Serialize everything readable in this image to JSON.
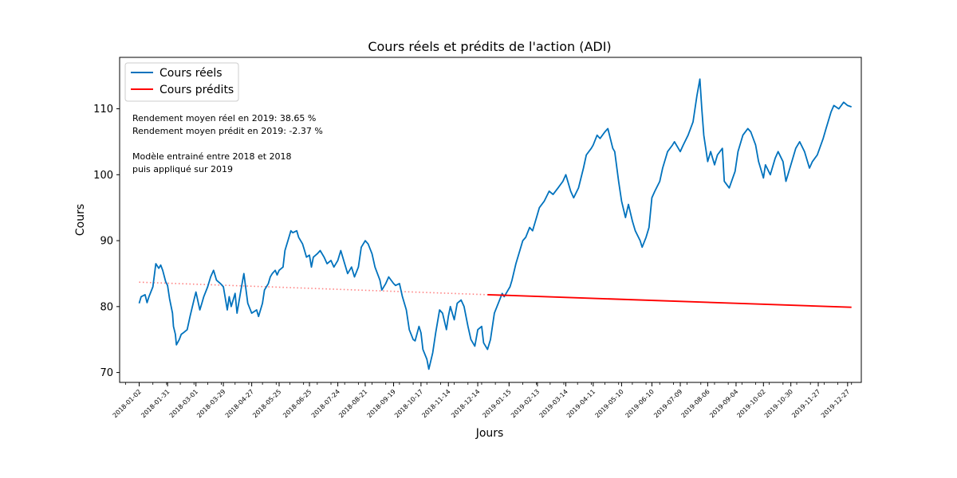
{
  "chart_data": {
    "type": "line",
    "title": "Cours réels et prédits de l'action (ADI)",
    "xlabel": "Jours",
    "ylabel": "Cours",
    "ylim": [
      68.5,
      117.8
    ],
    "yticks": [
      70,
      80,
      90,
      100,
      110
    ],
    "x_range": [
      "2017-12-13",
      "2020-01-10"
    ],
    "xticks": [
      "2018-01-02",
      "2018-01-31",
      "2018-03-01",
      "2018-03-29",
      "2018-04-27",
      "2018-05-25",
      "2018-06-25",
      "2018-07-24",
      "2018-08-21",
      "2018-09-19",
      "2018-10-17",
      "2018-11-14",
      "2018-12-14",
      "2019-01-15",
      "2019-02-13",
      "2019-03-14",
      "2019-04-11",
      "2019-05-10",
      "2019-06-10",
      "2019-07-09",
      "2019-08-06",
      "2019-09-04",
      "2019-10-02",
      "2019-10-30",
      "2019-11-27",
      "2019-12-27"
    ],
    "legend": {
      "position": "top-left",
      "entries": [
        "Cours réels",
        "Cours prédits"
      ]
    },
    "annotations": [
      "Rendement moyen réel en 2019: 38.65 %",
      "Rendement moyen prédit en 2019: -2.37 %",
      "",
      "Modèle entrainé entre 2018 et 2018",
      "puis appliqué sur 2019"
    ],
    "series": [
      {
        "name": "Cours réels",
        "color": "#0072bd",
        "style": "solid",
        "points": [
          [
            "2018-01-02",
            80.5
          ],
          [
            "2018-01-04",
            81.5
          ],
          [
            "2018-01-08",
            81.8
          ],
          [
            "2018-01-10",
            80.6
          ],
          [
            "2018-01-12",
            81.5
          ],
          [
            "2018-01-16",
            83.0
          ],
          [
            "2018-01-19",
            86.5
          ],
          [
            "2018-01-22",
            85.8
          ],
          [
            "2018-01-24",
            86.3
          ],
          [
            "2018-01-26",
            85.5
          ],
          [
            "2018-01-29",
            83.8
          ],
          [
            "2018-01-31",
            83.2
          ],
          [
            "2018-02-02",
            81.2
          ],
          [
            "2018-02-05",
            79.0
          ],
          [
            "2018-02-06",
            77.0
          ],
          [
            "2018-02-08",
            75.8
          ],
          [
            "2018-02-09",
            74.2
          ],
          [
            "2018-02-12",
            75.0
          ],
          [
            "2018-02-14",
            75.8
          ],
          [
            "2018-02-16",
            76.0
          ],
          [
            "2018-02-20",
            76.5
          ],
          [
            "2018-02-23",
            78.5
          ],
          [
            "2018-02-27",
            81.0
          ],
          [
            "2018-03-01",
            82.2
          ],
          [
            "2018-03-05",
            79.5
          ],
          [
            "2018-03-07",
            80.5
          ],
          [
            "2018-03-09",
            81.5
          ],
          [
            "2018-03-13",
            83.0
          ],
          [
            "2018-03-16",
            84.5
          ],
          [
            "2018-03-19",
            85.5
          ],
          [
            "2018-03-22",
            84.0
          ],
          [
            "2018-03-26",
            83.5
          ],
          [
            "2018-03-29",
            83.0
          ],
          [
            "2018-04-02",
            79.5
          ],
          [
            "2018-04-04",
            81.5
          ],
          [
            "2018-04-06",
            80.0
          ],
          [
            "2018-04-10",
            82.0
          ],
          [
            "2018-04-12",
            79.0
          ],
          [
            "2018-04-16",
            82.5
          ],
          [
            "2018-04-19",
            85.0
          ],
          [
            "2018-04-23",
            80.5
          ],
          [
            "2018-04-27",
            79.0
          ],
          [
            "2018-05-02",
            79.5
          ],
          [
            "2018-05-04",
            78.5
          ],
          [
            "2018-05-08",
            80.5
          ],
          [
            "2018-05-10",
            82.5
          ],
          [
            "2018-05-14",
            83.5
          ],
          [
            "2018-05-16",
            84.5
          ],
          [
            "2018-05-18",
            85.0
          ],
          [
            "2018-05-21",
            85.5
          ],
          [
            "2018-05-23",
            84.8
          ],
          [
            "2018-05-25",
            85.5
          ],
          [
            "2018-05-29",
            86.0
          ],
          [
            "2018-05-31",
            88.5
          ],
          [
            "2018-06-04",
            90.5
          ],
          [
            "2018-06-06",
            91.5
          ],
          [
            "2018-06-08",
            91.2
          ],
          [
            "2018-06-12",
            91.5
          ],
          [
            "2018-06-14",
            90.5
          ],
          [
            "2018-06-18",
            89.5
          ],
          [
            "2018-06-20",
            88.5
          ],
          [
            "2018-06-22",
            87.5
          ],
          [
            "2018-06-25",
            87.8
          ],
          [
            "2018-06-27",
            86.0
          ],
          [
            "2018-06-29",
            87.5
          ],
          [
            "2018-07-03",
            88.0
          ],
          [
            "2018-07-06",
            88.5
          ],
          [
            "2018-07-10",
            87.5
          ],
          [
            "2018-07-13",
            86.5
          ],
          [
            "2018-07-17",
            87.0
          ],
          [
            "2018-07-20",
            86.0
          ],
          [
            "2018-07-24",
            87.0
          ],
          [
            "2018-07-27",
            88.5
          ],
          [
            "2018-07-31",
            86.5
          ],
          [
            "2018-08-03",
            85.0
          ],
          [
            "2018-08-07",
            86.0
          ],
          [
            "2018-08-10",
            84.5
          ],
          [
            "2018-08-14",
            86.0
          ],
          [
            "2018-08-17",
            89.0
          ],
          [
            "2018-08-21",
            90.0
          ],
          [
            "2018-08-24",
            89.5
          ],
          [
            "2018-08-28",
            88.0
          ],
          [
            "2018-08-31",
            86.0
          ],
          [
            "2018-09-05",
            84.0
          ],
          [
            "2018-09-07",
            82.5
          ],
          [
            "2018-09-11",
            83.5
          ],
          [
            "2018-09-14",
            84.5
          ],
          [
            "2018-09-19",
            83.5
          ],
          [
            "2018-09-21",
            83.2
          ],
          [
            "2018-09-25",
            83.5
          ],
          [
            "2018-09-28",
            81.5
          ],
          [
            "2018-10-02",
            79.5
          ],
          [
            "2018-10-05",
            76.5
          ],
          [
            "2018-10-09",
            75.0
          ],
          [
            "2018-10-11",
            74.8
          ],
          [
            "2018-10-15",
            77.0
          ],
          [
            "2018-10-17",
            76.0
          ],
          [
            "2018-10-19",
            73.5
          ],
          [
            "2018-10-23",
            72.0
          ],
          [
            "2018-10-25",
            70.5
          ],
          [
            "2018-10-29",
            73.0
          ],
          [
            "2018-11-01",
            76.0
          ],
          [
            "2018-11-05",
            79.5
          ],
          [
            "2018-11-08",
            79.0
          ],
          [
            "2018-11-12",
            76.5
          ],
          [
            "2018-11-14",
            78.5
          ],
          [
            "2018-11-16",
            80.0
          ],
          [
            "2018-11-20",
            78.0
          ],
          [
            "2018-11-23",
            80.5
          ],
          [
            "2018-11-27",
            81.0
          ],
          [
            "2018-11-30",
            80.0
          ],
          [
            "2018-12-04",
            77.0
          ],
          [
            "2018-12-07",
            75.0
          ],
          [
            "2018-12-11",
            74.0
          ],
          [
            "2018-12-14",
            76.5
          ],
          [
            "2018-12-18",
            77.0
          ],
          [
            "2018-12-20",
            74.5
          ],
          [
            "2018-12-24",
            73.5
          ],
          [
            "2018-12-27",
            75.0
          ],
          [
            "2018-12-31",
            79.0
          ],
          [
            "2019-01-04",
            80.5
          ],
          [
            "2019-01-08",
            82.0
          ],
          [
            "2019-01-10",
            81.5
          ],
          [
            "2019-01-14",
            82.5
          ],
          [
            "2019-01-16",
            83.0
          ],
          [
            "2019-01-18",
            84.0
          ],
          [
            "2019-01-22",
            86.5
          ],
          [
            "2019-01-25",
            88.0
          ],
          [
            "2019-01-29",
            90.0
          ],
          [
            "2019-02-01",
            90.5
          ],
          [
            "2019-02-05",
            92.0
          ],
          [
            "2019-02-08",
            91.5
          ],
          [
            "2019-02-12",
            93.5
          ],
          [
            "2019-02-15",
            95.0
          ],
          [
            "2019-02-20",
            96.0
          ],
          [
            "2019-02-25",
            97.5
          ],
          [
            "2019-03-01",
            97.0
          ],
          [
            "2019-03-06",
            98.0
          ],
          [
            "2019-03-11",
            99.0
          ],
          [
            "2019-03-14",
            100.0
          ],
          [
            "2019-03-19",
            97.5
          ],
          [
            "2019-03-22",
            96.5
          ],
          [
            "2019-03-27",
            98.0
          ],
          [
            "2019-04-01",
            101.0
          ],
          [
            "2019-04-04",
            103.0
          ],
          [
            "2019-04-09",
            104.0
          ],
          [
            "2019-04-11",
            104.5
          ],
          [
            "2019-04-15",
            106.0
          ],
          [
            "2019-04-18",
            105.5
          ],
          [
            "2019-04-23",
            106.5
          ],
          [
            "2019-04-26",
            107.0
          ],
          [
            "2019-05-01",
            104.0
          ],
          [
            "2019-05-03",
            103.5
          ],
          [
            "2019-05-07",
            99.0
          ],
          [
            "2019-05-10",
            96.0
          ],
          [
            "2019-05-14",
            93.5
          ],
          [
            "2019-05-17",
            95.5
          ],
          [
            "2019-05-21",
            93.0
          ],
          [
            "2019-05-24",
            91.5
          ],
          [
            "2019-05-29",
            90.0
          ],
          [
            "2019-05-31",
            89.0
          ],
          [
            "2019-06-04",
            90.5
          ],
          [
            "2019-06-07",
            92.0
          ],
          [
            "2019-06-10",
            96.5
          ],
          [
            "2019-06-13",
            97.5
          ],
          [
            "2019-06-18",
            99.0
          ],
          [
            "2019-06-21",
            101.0
          ],
          [
            "2019-06-26",
            103.5
          ],
          [
            "2019-07-01",
            104.5
          ],
          [
            "2019-07-03",
            105.0
          ],
          [
            "2019-07-09",
            103.5
          ],
          [
            "2019-07-12",
            104.5
          ],
          [
            "2019-07-17",
            106.0
          ],
          [
            "2019-07-22",
            108.0
          ],
          [
            "2019-07-26",
            112.0
          ],
          [
            "2019-07-29",
            114.5
          ],
          [
            "2019-07-31",
            110.0
          ],
          [
            "2019-08-02",
            106.0
          ],
          [
            "2019-08-06",
            102.0
          ],
          [
            "2019-08-09",
            103.5
          ],
          [
            "2019-08-13",
            101.5
          ],
          [
            "2019-08-16",
            103.0
          ],
          [
            "2019-08-21",
            104.0
          ],
          [
            "2019-08-23",
            99.0
          ],
          [
            "2019-08-28",
            98.0
          ],
          [
            "2019-09-03",
            100.5
          ],
          [
            "2019-09-06",
            103.5
          ],
          [
            "2019-09-11",
            106.0
          ],
          [
            "2019-09-16",
            107.0
          ],
          [
            "2019-09-19",
            106.5
          ],
          [
            "2019-09-24",
            104.5
          ],
          [
            "2019-09-27",
            102.0
          ],
          [
            "2019-10-02",
            99.5
          ],
          [
            "2019-10-04",
            101.5
          ],
          [
            "2019-10-09",
            100.0
          ],
          [
            "2019-10-14",
            102.5
          ],
          [
            "2019-10-17",
            103.5
          ],
          [
            "2019-10-22",
            102.0
          ],
          [
            "2019-10-25",
            99.0
          ],
          [
            "2019-10-30",
            101.5
          ],
          [
            "2019-11-04",
            104.0
          ],
          [
            "2019-11-08",
            105.0
          ],
          [
            "2019-11-13",
            103.5
          ],
          [
            "2019-11-18",
            101.0
          ],
          [
            "2019-11-21",
            102.0
          ],
          [
            "2019-11-26",
            103.0
          ],
          [
            "2019-12-02",
            105.5
          ],
          [
            "2019-12-05",
            107.0
          ],
          [
            "2019-12-10",
            109.5
          ],
          [
            "2019-12-13",
            110.5
          ],
          [
            "2019-12-18",
            110.0
          ],
          [
            "2019-12-23",
            111.0
          ],
          [
            "2019-12-27",
            110.5
          ],
          [
            "2019-12-31",
            110.3
          ]
        ]
      },
      {
        "name": "Cours prédits",
        "color": "#ff0000",
        "style": "solid",
        "points": [
          [
            "2018-12-24",
            81.8
          ],
          [
            "2019-12-31",
            79.9
          ]
        ]
      },
      {
        "name": "",
        "color": "#ff8080",
        "style": "dotted",
        "points": [
          [
            "2018-01-02",
            83.7
          ],
          [
            "2018-12-24",
            81.8
          ]
        ]
      }
    ]
  }
}
